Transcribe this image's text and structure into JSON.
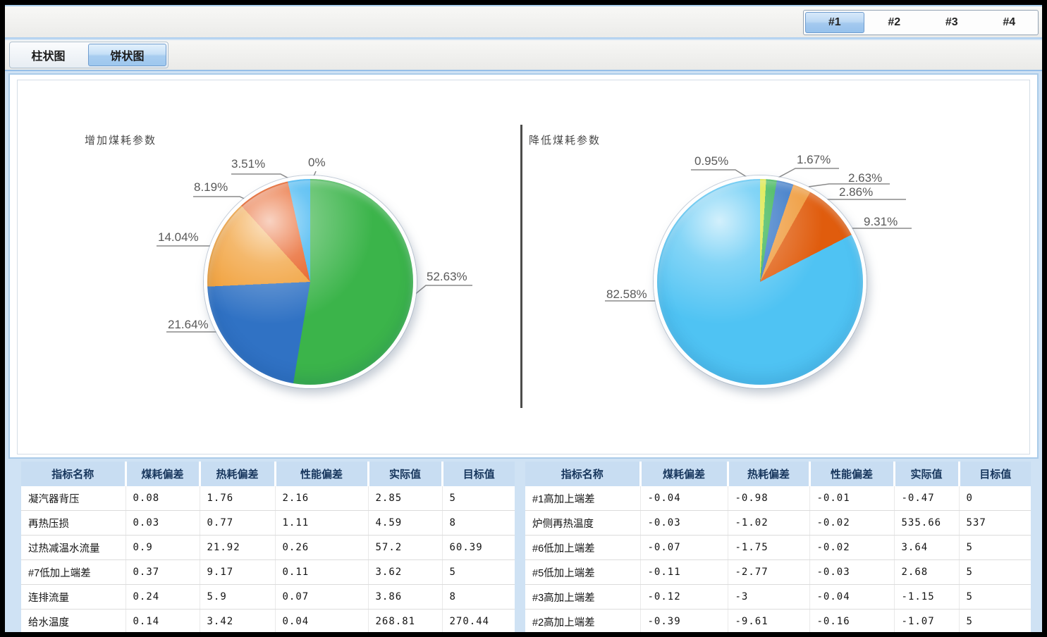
{
  "window": {
    "unit_tabs": [
      {
        "label": "#1",
        "active": true
      },
      {
        "label": "#2",
        "active": false
      },
      {
        "label": "#3",
        "active": false
      },
      {
        "label": "#4",
        "active": false
      }
    ],
    "view_tabs": [
      {
        "label": "柱状图",
        "active": false
      },
      {
        "label": "饼状图",
        "active": true
      }
    ]
  },
  "chart_data": [
    {
      "type": "pie",
      "title": "增加煤耗参数",
      "legend_position": "none",
      "slices": [
        {
          "label": "52.63%",
          "value": 52.63,
          "color": "#3bb44a"
        },
        {
          "label": "21.64%",
          "value": 21.64,
          "color": "#3072c4"
        },
        {
          "label": "14.04%",
          "value": 14.04,
          "color": "#f09a2d"
        },
        {
          "label": "8.19%",
          "value": 8.19,
          "color": "#e5500e"
        },
        {
          "label": "3.51%",
          "value": 3.51,
          "color": "#2eaef0"
        },
        {
          "label": "0%",
          "value": 0,
          "color": "#d9e531"
        }
      ]
    },
    {
      "type": "pie",
      "title": "降低煤耗参数",
      "legend_position": "none",
      "slices": [
        {
          "label": "0.95%",
          "value": 0.95,
          "color": "#d9e531"
        },
        {
          "label": "1.67%",
          "value": 1.67,
          "color": "#2eb04a"
        },
        {
          "label": "2.63%",
          "value": 2.63,
          "color": "#3072c4"
        },
        {
          "label": "2.86%",
          "value": 2.86,
          "color": "#ef9a3a"
        },
        {
          "label": "9.31%",
          "value": 9.31,
          "color": "#e05c0d"
        },
        {
          "label": "82.58%",
          "value": 82.58,
          "color": "#4fc3f3"
        }
      ]
    }
  ],
  "tables": {
    "headers": [
      "指标名称",
      "煤耗偏差",
      "热耗偏差",
      "性能偏差",
      "实际值",
      "目标值"
    ],
    "left_rows": [
      [
        "凝汽器背压",
        "0.08",
        "1.76",
        "2.16",
        "2.85",
        "5"
      ],
      [
        "再热压损",
        "0.03",
        "0.77",
        "1.11",
        "4.59",
        "8"
      ],
      [
        "过热减温水流量",
        "0.9",
        "21.92",
        "0.26",
        "57.2",
        "60.39"
      ],
      [
        "#7低加上端差",
        "0.37",
        "9.17",
        "0.11",
        "3.62",
        "5"
      ],
      [
        "连排流量",
        "0.24",
        "5.9",
        "0.07",
        "3.86",
        "8"
      ],
      [
        "给水温度",
        "0.14",
        "3.42",
        "0.04",
        "268.81",
        "270.44"
      ]
    ],
    "right_rows": [
      [
        "#1高加上端差",
        "-0.04",
        "-0.98",
        "-0.01",
        "-0.47",
        "0"
      ],
      [
        "炉侧再热温度",
        "-0.03",
        "-1.02",
        "-0.02",
        "535.66",
        "537"
      ],
      [
        "#6低加上端差",
        "-0.07",
        "-1.75",
        "-0.02",
        "3.64",
        "5"
      ],
      [
        "#5低加上端差",
        "-0.11",
        "-2.77",
        "-0.03",
        "2.68",
        "5"
      ],
      [
        "#3高加上端差",
        "-0.12",
        "-3",
        "-0.04",
        "-1.15",
        "5"
      ],
      [
        "#2高加上端差",
        "-0.39",
        "-9.61",
        "-0.16",
        "-1.07",
        "5"
      ]
    ]
  }
}
